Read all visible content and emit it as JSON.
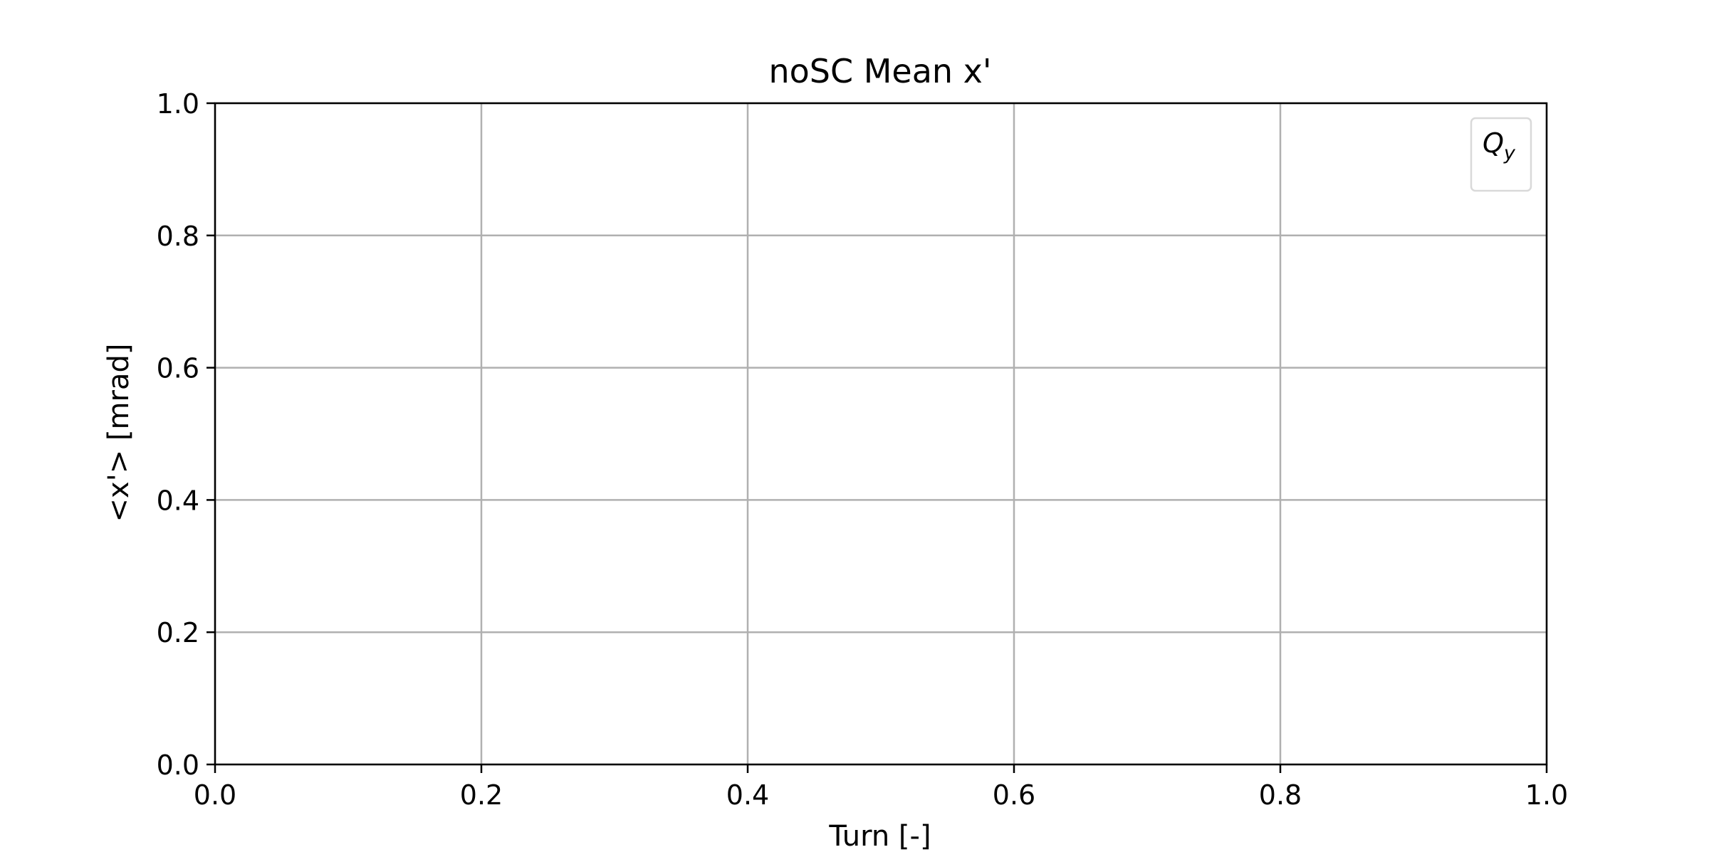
{
  "chart_data": {
    "type": "line",
    "title": "noSC Mean x'",
    "xlabel": "Turn [-]",
    "ylabel": "<x'> [mrad]",
    "xlim": [
      0.0,
      1.0
    ],
    "ylim": [
      0.0,
      1.0
    ],
    "xticks": [
      "0.0",
      "0.2",
      "0.4",
      "0.6",
      "0.8",
      "1.0"
    ],
    "yticks": [
      "0.0",
      "0.2",
      "0.4",
      "0.6",
      "0.8",
      "1.0"
    ],
    "grid": true,
    "legend": {
      "placement": "top-right",
      "title_main": "Q",
      "title_sub": "y",
      "entries": []
    },
    "series": [],
    "colors": {
      "axis": "#000000",
      "grid": "#b0b0b0",
      "legend_border": "#d9d9d9"
    }
  }
}
